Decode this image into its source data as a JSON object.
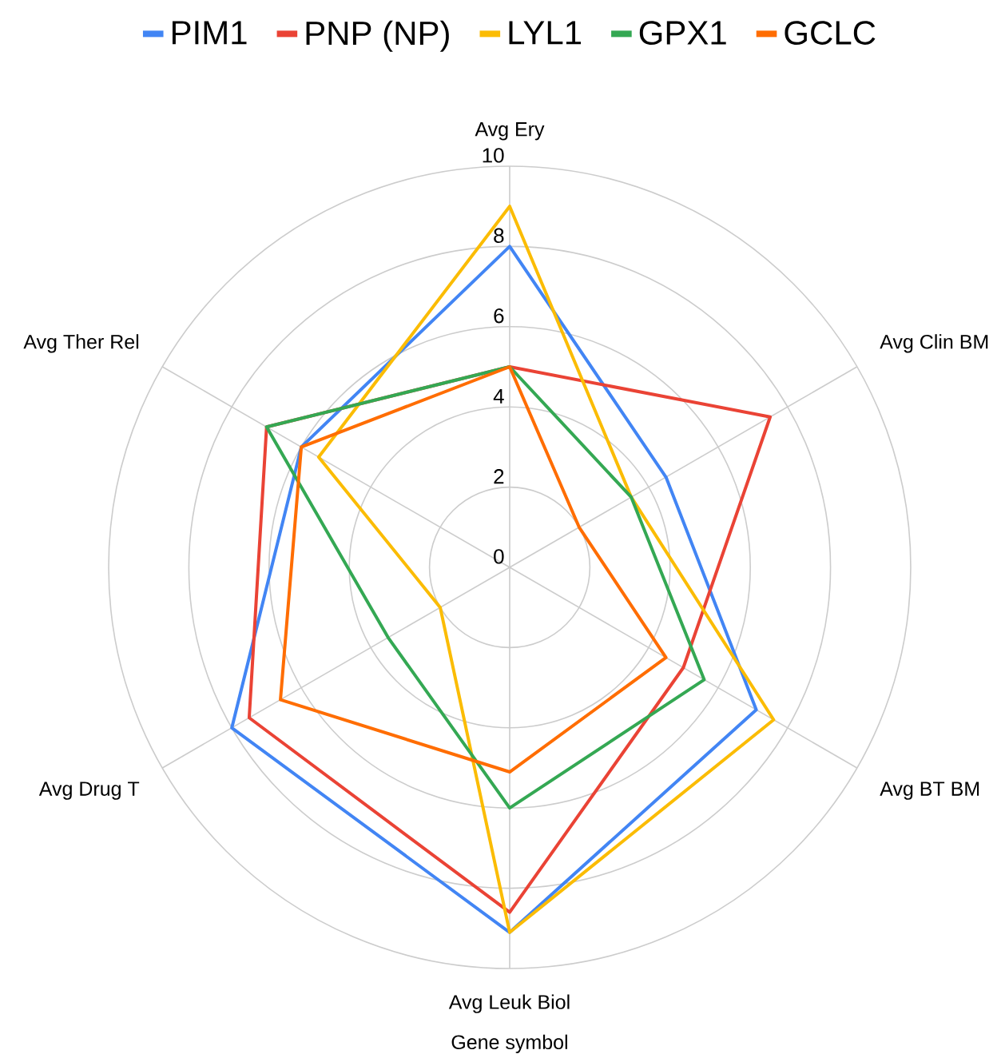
{
  "chart_data": {
    "type": "radar",
    "xlabel": "Gene symbol",
    "categories": [
      "Avg Ery",
      "Avg Clin BM",
      "Avg BT BM",
      "Avg Leuk Biol",
      "Avg Drug T",
      "Avg Ther Rel"
    ],
    "ylim": [
      0,
      10
    ],
    "yticks": [
      0,
      2,
      4,
      6,
      8,
      10
    ],
    "grid": true,
    "legend": "top",
    "series": [
      {
        "name": "PIM1",
        "color": "#4285f4",
        "values": [
          8,
          4.5,
          7.1,
          9.1,
          8,
          6
        ]
      },
      {
        "name": "PNP (NP)",
        "color": "#ea4335",
        "values": [
          5,
          7.5,
          5,
          8.6,
          7.5,
          7
        ]
      },
      {
        "name": "LYL1",
        "color": "#fbbc04",
        "values": [
          9,
          3.5,
          7.6,
          9.1,
          2,
          5.5
        ]
      },
      {
        "name": "GPX1",
        "color": "#34a853",
        "values": [
          5,
          3.5,
          5.6,
          6,
          3.5,
          7
        ]
      },
      {
        "name": "GCLC",
        "color": "#ff6d01",
        "values": [
          5,
          2,
          4.5,
          5.1,
          6.6,
          6
        ]
      }
    ]
  }
}
